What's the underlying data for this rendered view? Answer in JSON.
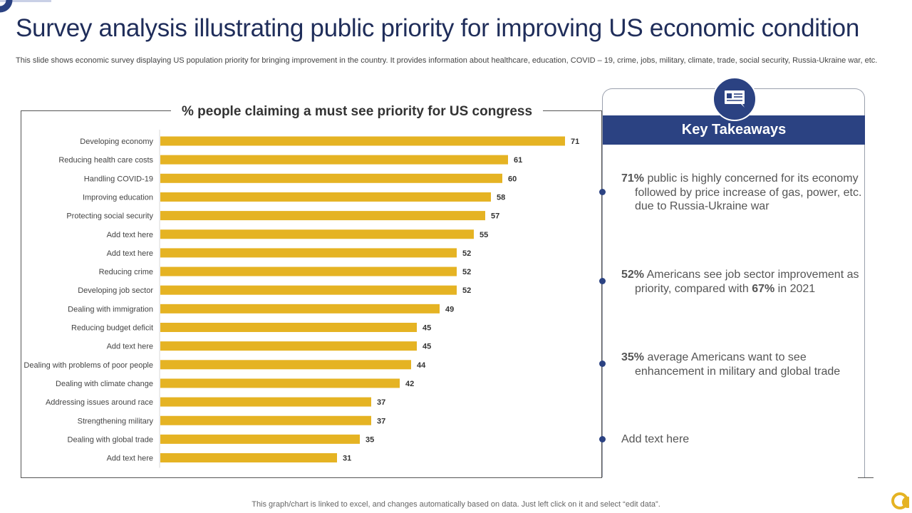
{
  "title": "Survey analysis illustrating public priority for improving US economic condition",
  "subtitle": "This slide shows economic survey displaying US population priority for bringing improvement in the country.  It provides information about healthcare, education, COVID – 19, crime, jobs, military, climate, trade, social security, Russia-Ukraine war, etc.",
  "colors": {
    "bar": "#e5b323",
    "accent": "#2b4282",
    "title": "#1f2d5a"
  },
  "chart_data": {
    "type": "bar",
    "orientation": "horizontal",
    "title": "% people claiming a must see priority for US congress",
    "categories": [
      "Developing economy",
      "Reducing health care costs",
      "Handling COVID-19",
      "Improving education",
      "Protecting social security",
      "Add text here",
      "Add text here",
      "Reducing crime",
      "Developing job sector",
      "Dealing with immigration",
      "Reducing budget deficit",
      "Add text here",
      "Dealing with problems of poor people",
      "Dealing with climate change",
      "Addressing issues around race",
      "Strengthening military",
      "Dealing with global trade",
      "Add text here"
    ],
    "values": [
      71,
      61,
      60,
      58,
      57,
      55,
      52,
      52,
      52,
      49,
      45,
      45,
      44,
      42,
      37,
      37,
      35,
      31
    ],
    "xlim": [
      0,
      75
    ],
    "grid": false,
    "legend": "none"
  },
  "takeaways": {
    "header": "Key Takeaways",
    "icon": "presentation-board-icon",
    "items": [
      {
        "strong": "71%",
        "rest_first": " public is highly concerned for its economy",
        "rest_indent": "followed by price increase of gas, power, etc. due to Russia-Ukraine war"
      },
      {
        "strong": "52%",
        "rest_first": " Americans see job sector improvement as",
        "rest_indent_a": "priority, compared with ",
        "strong2": "67%",
        "rest_indent_b": " in 2021"
      },
      {
        "strong": "35%",
        "rest_first": " average Americans want to see",
        "rest_indent": "enhancement  in military and global trade"
      },
      {
        "text": "Add text here"
      }
    ]
  },
  "footer": "This graph/chart is linked to excel,  and changes automatically based on data. Just left click on it and select “edit data”."
}
